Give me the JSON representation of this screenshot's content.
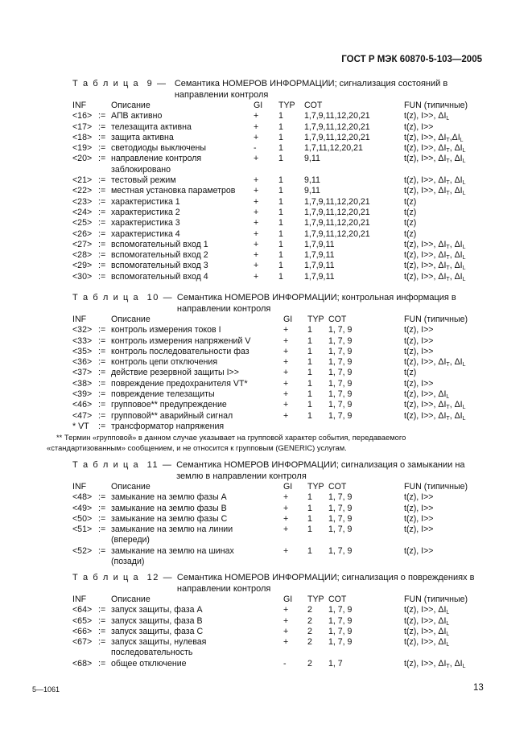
{
  "header": {
    "doc_id": "ГОСТ Р МЭК 60870-5-103—2005"
  },
  "columns": {
    "inf": "INF",
    "desc": "Описание",
    "gi": "GI",
    "typ": "TYP",
    "cot": "COT",
    "fun": "FUN (типичные)"
  },
  "tables": [
    {
      "label": "Т а б л и ц а  9 —  ",
      "title": "Семантика НОМЕРОВ ИНФОРМАЦИИ; сигнализация состояний в направлении контроля",
      "rows": [
        {
          "inf": "<16>",
          "op": ":=",
          "desc": "АПВ активно",
          "gi": "+",
          "typ": "1",
          "cot": "1,7,9,11,12,20,21",
          "fun": "t(z), I>>, ΔIL"
        },
        {
          "inf": "<17>",
          "op": ":=",
          "desc": "телезащита активна",
          "gi": "+",
          "typ": "1",
          "cot": "1,7,9,11,12,20,21",
          "fun": "t(z), I>>"
        },
        {
          "inf": "<18>",
          "op": ":=",
          "desc": "защита активна",
          "gi": "+",
          "typ": "1",
          "cot": "1,7,9,11,12,20,21",
          "fun": "t(z), I>>, ΔIT,ΔIL"
        },
        {
          "inf": "<19>",
          "op": ":=",
          "desc": "светодиоды выключены",
          "gi": "-",
          "typ": "1",
          "cot": "1,7,11,12,20,21",
          "fun": "t(z), I>>, ΔIT, ΔIL"
        },
        {
          "inf": "<20>",
          "op": ":=",
          "desc": "направление контроля заблокировано",
          "gi": "+",
          "typ": "1",
          "cot": "9,11",
          "fun": "t(z), I>>, ΔIT, ΔIL"
        },
        {
          "inf": "<21>",
          "op": ":=",
          "desc": "тестовый режим",
          "gi": "+",
          "typ": "1",
          "cot": "9,11",
          "fun": "t(z), I>>, ΔIT, ΔIL"
        },
        {
          "inf": "<22>",
          "op": ":=",
          "desc": "местная установка параметров",
          "gi": "+",
          "typ": "1",
          "cot": "9,11",
          "fun": "t(z), I>>, ΔIT, ΔIL"
        },
        {
          "inf": "<23>",
          "op": ":=",
          "desc": "характеристика 1",
          "gi": "+",
          "typ": "1",
          "cot": "1,7,9,11,12,20,21",
          "fun": "t(z)"
        },
        {
          "inf": "<24>",
          "op": ":=",
          "desc": "характеристика 2",
          "gi": "+",
          "typ": "1",
          "cot": "1,7,9,11,12,20,21",
          "fun": "t(z)"
        },
        {
          "inf": "<25>",
          "op": ":=",
          "desc": "характеристика 3",
          "gi": "+",
          "typ": "1",
          "cot": "1,7,9,11,12,20,21",
          "fun": "t(z)"
        },
        {
          "inf": "<26>",
          "op": ":=",
          "desc": "характеристика 4",
          "gi": "+",
          "typ": "1",
          "cot": "1,7,9,11,12,20,21",
          "fun": "t(z)"
        },
        {
          "inf": "<27>",
          "op": ":=",
          "desc": "вспомогательный вход 1",
          "gi": "+",
          "typ": "1",
          "cot": "1,7,9,11",
          "fun": "t(z), I>>, ΔIT, ΔIL"
        },
        {
          "inf": "<28>",
          "op": ":=",
          "desc": "вспомогательный вход 2",
          "gi": "+",
          "typ": "1",
          "cot": "1,7,9,11",
          "fun": "t(z), I>>, ΔIT, ΔIL"
        },
        {
          "inf": "<29>",
          "op": ":=",
          "desc": "вспомогательный вход 3",
          "gi": "+",
          "typ": "1",
          "cot": "1,7,9,11",
          "fun": "t(z), I>>, ΔIT, ΔIL"
        },
        {
          "inf": "<30>",
          "op": ":=",
          "desc": "вспомогательный вход 4",
          "gi": "+",
          "typ": "1",
          "cot": "1,7,9,11",
          "fun": "t(z), I>>, ΔIT, ΔIL"
        }
      ]
    },
    {
      "label": "Т а б л и ц а  10 — ",
      "title": "Семантика НОМЕРОВ ИНФОРМАЦИИ; контрольная информация в направлении контроля",
      "rows": [
        {
          "inf": "<32>",
          "op": ":=",
          "desc": "контроль измерения токов I",
          "gi": "+",
          "typ": "1",
          "cot": "1, 7, 9",
          "fun": "t(z), I>>"
        },
        {
          "inf": "<33>",
          "op": ":=",
          "desc": "контроль измерения напряжений V",
          "gi": "+",
          "typ": "1",
          "cot": "1, 7, 9",
          "fun": "t(z), I>>"
        },
        {
          "inf": "<35>",
          "op": ":=",
          "desc": "контроль последовательности фаз",
          "gi": "+",
          "typ": "1",
          "cot": "1, 7, 9",
          "fun": "t(z), I>>"
        },
        {
          "inf": "<36>",
          "op": ":=",
          "desc": "контроль цепи отключения",
          "gi": "+",
          "typ": "1",
          "cot": "1, 7, 9",
          "fun": "t(z), I>>, ΔIT, ΔIL"
        },
        {
          "inf": "<37>",
          "op": ":=",
          "desc": "действие резервной защиты I>>",
          "gi": "+",
          "typ": "1",
          "cot": "1, 7, 9",
          "fun": "t(z)"
        },
        {
          "inf": "<38>",
          "op": ":=",
          "desc": "повреждение предохранителя VT*",
          "gi": "+",
          "typ": "1",
          "cot": "1, 7, 9",
          "fun": "t(z), I>>"
        },
        {
          "inf": "<39>",
          "op": ":=",
          "desc": "повреждение телезащиты",
          "gi": "+",
          "typ": "1",
          "cot": "1, 7, 9",
          "fun": "t(z), I>>, ΔIL"
        },
        {
          "inf": "<46>",
          "op": ":=",
          "desc": "групповое** предупреждение",
          "gi": "+",
          "typ": "1",
          "cot": "1, 7, 9",
          "fun": "t(z), I>>, ΔIT, ΔIL"
        },
        {
          "inf": "<47>",
          "op": ":=",
          "desc": "групповой** аварийный сигнал",
          "gi": "+",
          "typ": "1",
          "cot": "1, 7, 9",
          "fun": "t(z), I>>, ΔIT, ΔIL"
        },
        {
          "inf": "* VT",
          "op": ":=",
          "desc": "трансформатор напряжения",
          "gi": "",
          "typ": "",
          "cot": "",
          "fun": ""
        }
      ],
      "note": "** Термин «групповой» в данном случае указывает на групповой характер события, передаваемого «стандартизованным» сообщением, и не относится к групповым (GENERIC) услугам."
    },
    {
      "label": "Т а б л и ц а  11 — ",
      "title": "Семантика НОМЕРОВ ИНФОРМАЦИИ; сигнализация о замыкании на землю в направлении контроля",
      "rows": [
        {
          "inf": "<48>",
          "op": ":=",
          "desc": "замыкание на землю фазы А",
          "gi": "+",
          "typ": "1",
          "cot": "1, 7, 9",
          "fun": "t(z), I>>"
        },
        {
          "inf": "<49>",
          "op": ":=",
          "desc": "замыкание на землю фазы В",
          "gi": "+",
          "typ": "1",
          "cot": "1, 7, 9",
          "fun": "t(z), I>>"
        },
        {
          "inf": "<50>",
          "op": ":=",
          "desc": "замыкание на землю фазы С",
          "gi": "+",
          "typ": "1",
          "cot": "1, 7, 9",
          "fun": "t(z), I>>"
        },
        {
          "inf": "<51>",
          "op": ":=",
          "desc": "замыкание на землю на линии (впереди)",
          "gi": "+",
          "typ": "1",
          "cot": "1, 7, 9",
          "fun": "t(z), I>>"
        },
        {
          "inf": "<52>",
          "op": ":=",
          "desc": "замыкание на землю на шинах (позади)",
          "gi": "+",
          "typ": "1",
          "cot": "1, 7, 9",
          "fun": "t(z), I>>"
        }
      ]
    },
    {
      "label": "Т а б л и ц а  12 — ",
      "title": "Семантика НОМЕРОВ ИНФОРМАЦИИ; сигнализация о повреждениях в направлении контроля",
      "rows": [
        {
          "inf": "<64>",
          "op": ":=",
          "desc": "запуск защиты, фаза А",
          "gi": "+",
          "typ": "2",
          "cot": "1, 7, 9",
          "fun": "t(z), I>>, ΔIL"
        },
        {
          "inf": "<65>",
          "op": ":=",
          "desc": "запуск защиты, фаза В",
          "gi": "+",
          "typ": "2",
          "cot": "1, 7, 9",
          "fun": "t(z), I>>, ΔIL"
        },
        {
          "inf": "<66>",
          "op": ":=",
          "desc": "запуск защиты, фаза С",
          "gi": "+",
          "typ": "2",
          "cot": "1, 7, 9",
          "fun": "t(z), I>>, ΔIL"
        },
        {
          "inf": "<67>",
          "op": ":=",
          "desc": "запуск защиты, нулевая последовательность",
          "gi": "+",
          "typ": "2",
          "cot": "1, 7, 9",
          "fun": "t(z), I>>, ΔIL"
        },
        {
          "inf": "<68>",
          "op": ":=",
          "desc": "общее отключение",
          "gi": "-",
          "typ": "2",
          "cot": "1, 7",
          "fun": "t(z), I>>, ΔIT, ΔIL"
        }
      ]
    }
  ],
  "footer": {
    "code": "5—1061",
    "page": "13"
  }
}
